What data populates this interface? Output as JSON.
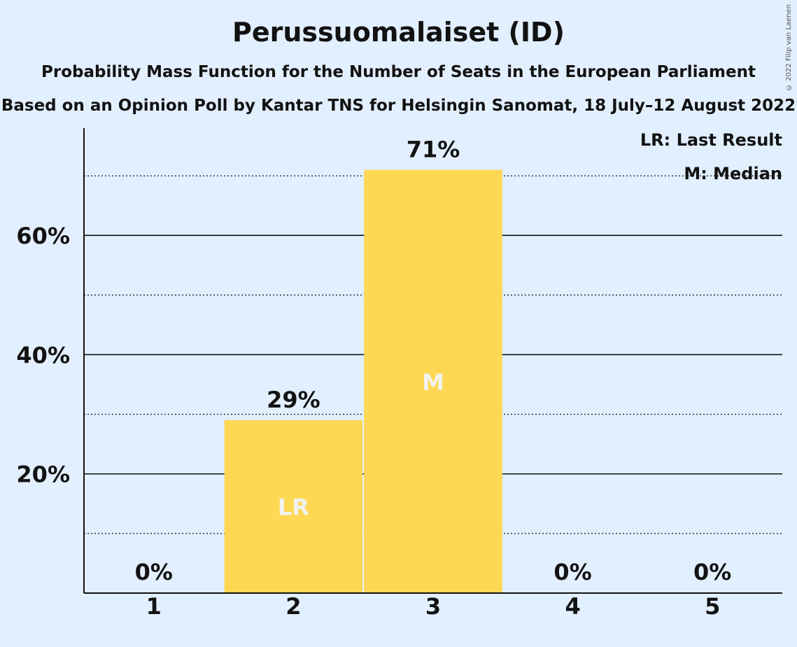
{
  "chart_data": {
    "type": "bar",
    "title": "Perussuomalaiset (ID)",
    "subtitle": "Probability Mass Function for the Number of Seats in the European Parliament",
    "subtitle2": "Based on an Opinion Poll by Kantar TNS for Helsingin Sanomat, 18 July–12 August 2022",
    "copyright": "© 2022 Filip van Laenen",
    "categories": [
      "1",
      "2",
      "3",
      "4",
      "5"
    ],
    "values": [
      0,
      29,
      71,
      0,
      0
    ],
    "value_labels": [
      "0%",
      "29%",
      "71%",
      "0%",
      "0%"
    ],
    "bar_markers": [
      "",
      "LR",
      "M",
      "",
      ""
    ],
    "yticks": [
      20,
      40,
      60
    ],
    "ytick_labels": [
      "20%",
      "40%",
      "60%"
    ],
    "minor_gridlines": [
      10,
      30,
      50,
      70
    ],
    "ylim": [
      0,
      78
    ],
    "legend": {
      "position": "top-right",
      "items": [
        "LR: Last Result",
        "M: Median"
      ]
    },
    "colors": {
      "bar": "#fed853",
      "background": "#e2efff",
      "text": "#121212",
      "marker_text": "#f2f2f2"
    }
  }
}
